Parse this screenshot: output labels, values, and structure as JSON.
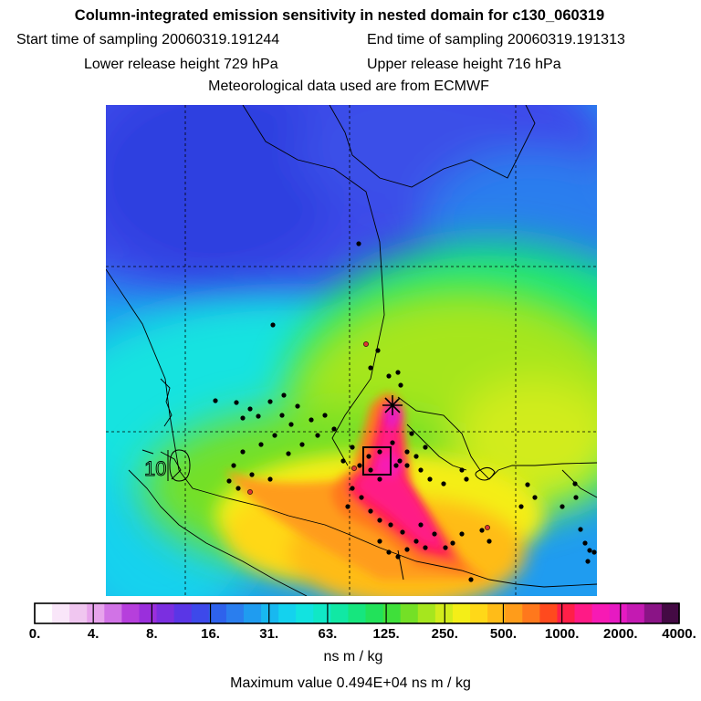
{
  "header": {
    "title": "Column-integrated emission sensitivity in nested domain for c130_060319",
    "start_label": "Start time of sampling 20060319.191244",
    "end_label": "End time of sampling 20060319.191313",
    "lower_label": "Lower release height  729 hPa",
    "upper_label": "Upper release height  716 hPa",
    "met_label": "Meteorological data used are from ECMWF"
  },
  "chart_data": {
    "type": "heatmap",
    "title": "Column-integrated emission sensitivity in nested domain for c130_060319",
    "colorbar": {
      "unit": "ns m / kg",
      "tick_labels": [
        "0.",
        "4.",
        "8.",
        "16.",
        "31.",
        "63.",
        "125.",
        "250.",
        "500.",
        "1000.",
        "2000.",
        "4000."
      ],
      "colors": [
        "#ffffff",
        "#f9e6f9",
        "#f0c6f0",
        "#e7a4ec",
        "#d173e6",
        "#b63fdc",
        "#9a2fdc",
        "#7b2fe0",
        "#5a36e6",
        "#3d49ea",
        "#2e62ec",
        "#2a7eee",
        "#1f9cf0",
        "#18b8f0",
        "#14d2ee",
        "#12e3e0",
        "#10e8c6",
        "#11e8a4",
        "#16e67e",
        "#22e25a",
        "#3fe03a",
        "#74e026",
        "#a6e61e",
        "#d2ec1c",
        "#f4ee18",
        "#ffd818",
        "#ffbc18",
        "#ff9c1a",
        "#ff781c",
        "#ff4a1e",
        "#ff1f48",
        "#ff1a86",
        "#f71ab4",
        "#e61ac2",
        "#c41ab2",
        "#8a1486",
        "#440a44"
      ]
    },
    "max_label": "Maximum value  0.494E+04 ns m / kg",
    "max_value": 4940,
    "contour_label": "10",
    "grid": true
  }
}
